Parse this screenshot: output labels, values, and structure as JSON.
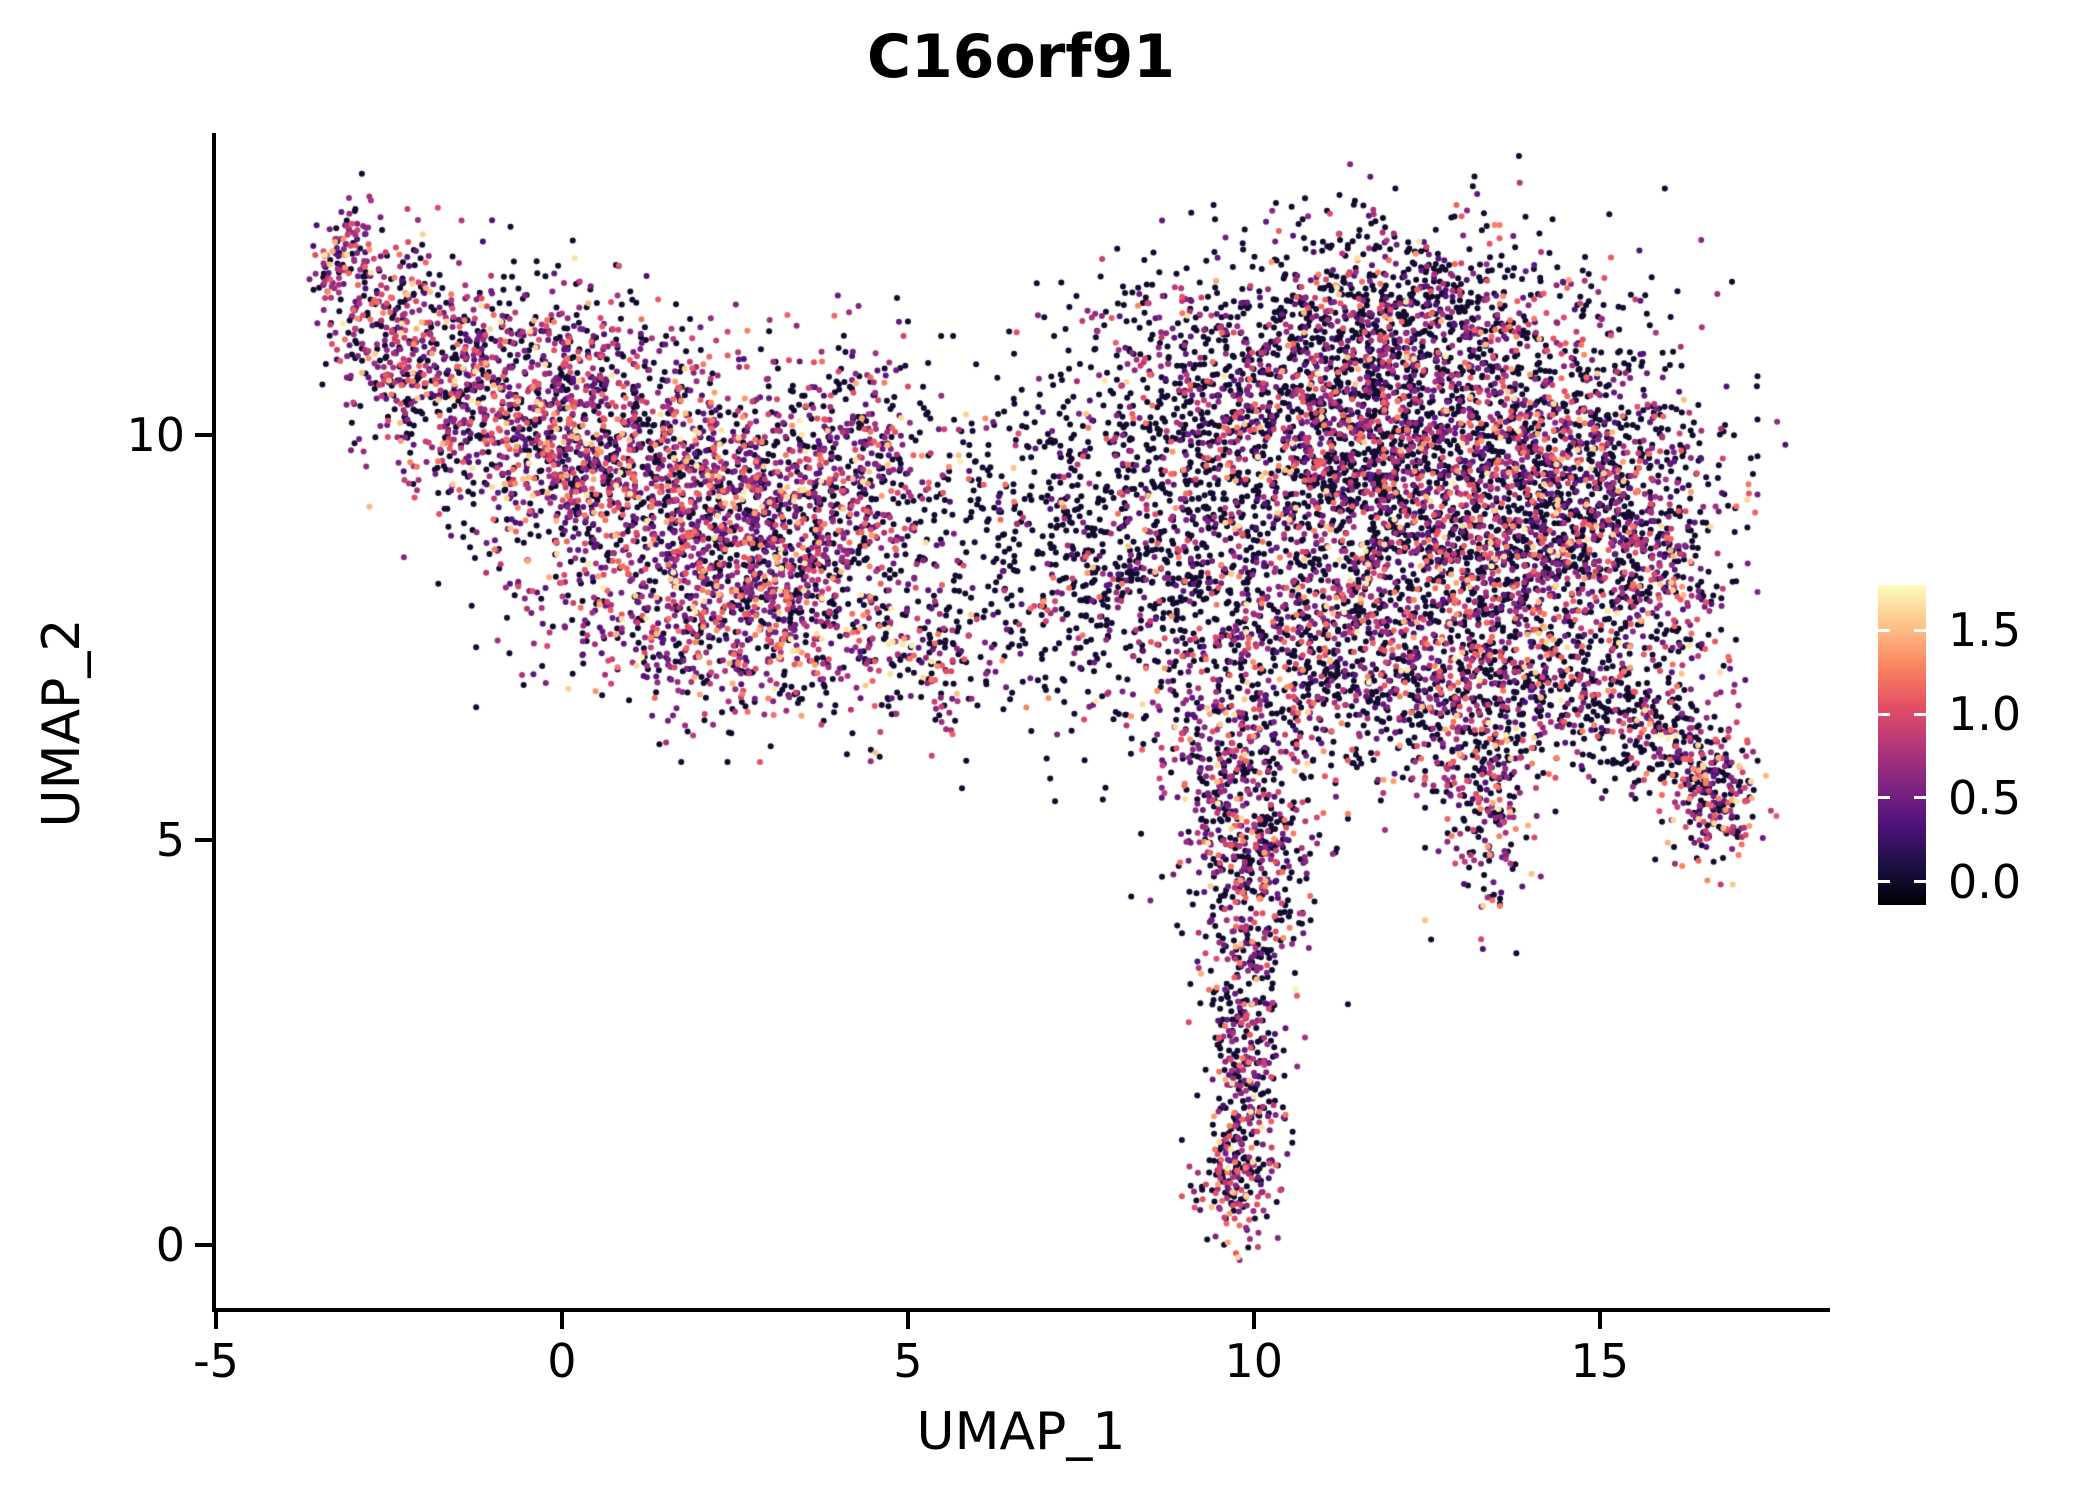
{
  "chart_data": {
    "type": "scatter",
    "subtype": "umap-feature-plot",
    "title": "C16orf91",
    "xlabel": "UMAP_1",
    "ylabel": "UMAP_2",
    "xlim": [
      -5,
      18.27
    ],
    "ylim": [
      -0.78,
      13.7
    ],
    "x_ticks": [
      {
        "value": -5,
        "label": "-5"
      },
      {
        "value": 0,
        "label": "0"
      },
      {
        "value": 5,
        "label": "5"
      },
      {
        "value": 10,
        "label": "10"
      },
      {
        "value": 15,
        "label": "15"
      }
    ],
    "y_ticks": [
      {
        "value": 0,
        "label": "0"
      },
      {
        "value": 5,
        "label": "5"
      },
      {
        "value": 10,
        "label": "10"
      }
    ],
    "grid": false,
    "background": "#ffffff",
    "axis_color": "#000000",
    "point_radius_px": 3,
    "seed": 42,
    "colorbar": {
      "position": "right",
      "domain": [
        -0.14,
        1.77
      ],
      "ticks": [
        {
          "value": 0.0,
          "label": "0.0"
        },
        {
          "value": 0.5,
          "label": "0.5"
        },
        {
          "value": 1.0,
          "label": "1.0"
        },
        {
          "value": 1.5,
          "label": "1.5"
        }
      ],
      "colormap": "magma",
      "stops": [
        {
          "t": 0.0,
          "color": "#000004"
        },
        {
          "t": 0.125,
          "color": "#1c1044"
        },
        {
          "t": 0.25,
          "color": "#4f127b"
        },
        {
          "t": 0.375,
          "color": "#812581"
        },
        {
          "t": 0.5,
          "color": "#b5367a"
        },
        {
          "t": 0.625,
          "color": "#e55064"
        },
        {
          "t": 0.75,
          "color": "#fb8661"
        },
        {
          "t": 0.875,
          "color": "#fec287"
        },
        {
          "t": 1.0,
          "color": "#fcfdbf"
        }
      ]
    },
    "value_bins": [
      [
        0,
        0.04
      ],
      [
        0.3,
        0.78
      ],
      [
        0.78,
        1.25
      ],
      [
        1.25,
        1.72
      ]
    ],
    "mixes": {
      "left": [
        0.36,
        0.36,
        0.21,
        0.07
      ],
      "bridge": [
        0.78,
        0.13,
        0.07,
        0.02
      ],
      "sparse_dark": [
        0.7,
        0.18,
        0.09,
        0.03
      ],
      "right": [
        0.5,
        0.28,
        0.17,
        0.05
      ],
      "right_top": [
        0.62,
        0.22,
        0.13,
        0.03
      ],
      "tail": [
        0.46,
        0.32,
        0.17,
        0.05
      ],
      "pink_blob": [
        0.33,
        0.28,
        0.28,
        0.11
      ]
    },
    "clusters": [
      {
        "cx": -3.15,
        "cy": 12.2,
        "sx": 0.18,
        "sy": 0.4,
        "rot": -0.35,
        "n": 120,
        "mix": "left"
      },
      {
        "cx": -2.6,
        "cy": 11.4,
        "sx": 0.35,
        "sy": 0.5,
        "rot": -0.5,
        "n": 170,
        "mix": "left"
      },
      {
        "cx": -1.8,
        "cy": 10.7,
        "sx": 0.6,
        "sy": 0.55,
        "rot": -0.4,
        "n": 260,
        "mix": "left"
      },
      {
        "cx": -0.2,
        "cy": 10.2,
        "sx": 1.1,
        "sy": 0.75,
        "rot": -0.3,
        "n": 800,
        "mix": "left"
      },
      {
        "cx": 1.6,
        "cy": 9.3,
        "sx": 1.5,
        "sy": 0.9,
        "rot": -0.25,
        "n": 1250,
        "mix": "left"
      },
      {
        "cx": 3.3,
        "cy": 8.7,
        "sx": 1.0,
        "sy": 0.8,
        "rot": -0.3,
        "n": 650,
        "mix": "left"
      },
      {
        "cx": 2.4,
        "cy": 7.5,
        "sx": 1.3,
        "sy": 0.55,
        "rot": 0,
        "n": 480,
        "mix": "left"
      },
      {
        "cx": 4.3,
        "cy": 9.9,
        "sx": 0.65,
        "sy": 0.65,
        "rot": 0,
        "n": 230,
        "mix": "left"
      },
      {
        "cx": -0.6,
        "cy": 11.5,
        "sx": 0.9,
        "sy": 0.4,
        "rot": -0.15,
        "n": 70,
        "mix": "left"
      },
      {
        "cx": 6.0,
        "cy": 8.7,
        "sx": 0.9,
        "sy": 0.9,
        "rot": 0,
        "n": 170,
        "mix": "bridge"
      },
      {
        "cx": 7.3,
        "cy": 8.3,
        "sx": 0.8,
        "sy": 1.0,
        "rot": 0,
        "n": 230,
        "mix": "bridge"
      },
      {
        "cx": 5.4,
        "cy": 7.2,
        "sx": 0.6,
        "sy": 0.5,
        "rot": 0,
        "n": 130,
        "mix": "tail"
      },
      {
        "cx": 8.6,
        "cy": 8.6,
        "sx": 0.9,
        "sy": 1.2,
        "rot": 0,
        "n": 450,
        "mix": "sparse_dark"
      },
      {
        "cx": 8.9,
        "cy": 10.7,
        "sx": 0.8,
        "sy": 0.7,
        "rot": 0.2,
        "n": 260,
        "mix": "right_top"
      },
      {
        "cx": 11.2,
        "cy": 10.4,
        "sx": 1.4,
        "sy": 1.0,
        "rot": 0.25,
        "n": 1300,
        "mix": "right_top"
      },
      {
        "cx": 12.8,
        "cy": 9.3,
        "sx": 1.6,
        "sy": 1.2,
        "rot": 0,
        "n": 2100,
        "mix": "right"
      },
      {
        "cx": 14.7,
        "cy": 9.1,
        "sx": 1.1,
        "sy": 1.0,
        "rot": 0,
        "n": 900,
        "mix": "right"
      },
      {
        "cx": 12.3,
        "cy": 11.5,
        "sx": 1.3,
        "sy": 0.55,
        "rot": 0,
        "n": 380,
        "mix": "right_top"
      },
      {
        "cx": 11.0,
        "cy": 7.3,
        "sx": 1.3,
        "sy": 0.8,
        "rot": 0,
        "n": 750,
        "mix": "right"
      },
      {
        "cx": 13.1,
        "cy": 6.8,
        "sx": 0.9,
        "sy": 0.6,
        "rot": 0,
        "n": 380,
        "mix": "right"
      },
      {
        "cx": 15.9,
        "cy": 8.0,
        "sx": 0.6,
        "sy": 0.85,
        "rot": 0,
        "n": 260,
        "mix": "right"
      },
      {
        "cx": 13.4,
        "cy": 5.5,
        "sx": 0.33,
        "sy": 0.75,
        "rot": 0,
        "n": 220,
        "mix": "tail"
      },
      {
        "cx": 14.8,
        "cy": 6.7,
        "sx": 0.85,
        "sy": 0.4,
        "rot": -0.3,
        "n": 210,
        "mix": "sparse_dark"
      },
      {
        "cx": 16.6,
        "cy": 5.6,
        "sx": 0.38,
        "sy": 0.5,
        "rot": 0.4,
        "n": 240,
        "mix": "pink_blob"
      },
      {
        "cx": 9.7,
        "cy": 5.7,
        "sx": 0.55,
        "sy": 0.75,
        "rot": 0,
        "n": 330,
        "mix": "tail"
      },
      {
        "cx": 10.1,
        "cy": 4.6,
        "sx": 0.45,
        "sy": 0.6,
        "rot": 0,
        "n": 230,
        "mix": "tail"
      },
      {
        "cx": 9.9,
        "cy": 3.3,
        "sx": 0.3,
        "sy": 0.7,
        "rot": 0,
        "n": 190,
        "mix": "tail"
      },
      {
        "cx": 9.9,
        "cy": 2.1,
        "sx": 0.26,
        "sy": 0.55,
        "rot": 0,
        "n": 150,
        "mix": "tail"
      },
      {
        "cx": 9.8,
        "cy": 0.9,
        "sx": 0.3,
        "sy": 0.45,
        "rot": 0,
        "n": 210,
        "mix": "tail"
      },
      {
        "cx": 6.8,
        "cy": 9.7,
        "sx": 1.0,
        "sy": 0.6,
        "rot": 0,
        "n": 60,
        "mix": "bridge"
      },
      {
        "cx": 15.9,
        "cy": 6.2,
        "sx": 0.5,
        "sy": 0.35,
        "rot": -0.5,
        "n": 120,
        "mix": "sparse_dark"
      }
    ]
  }
}
